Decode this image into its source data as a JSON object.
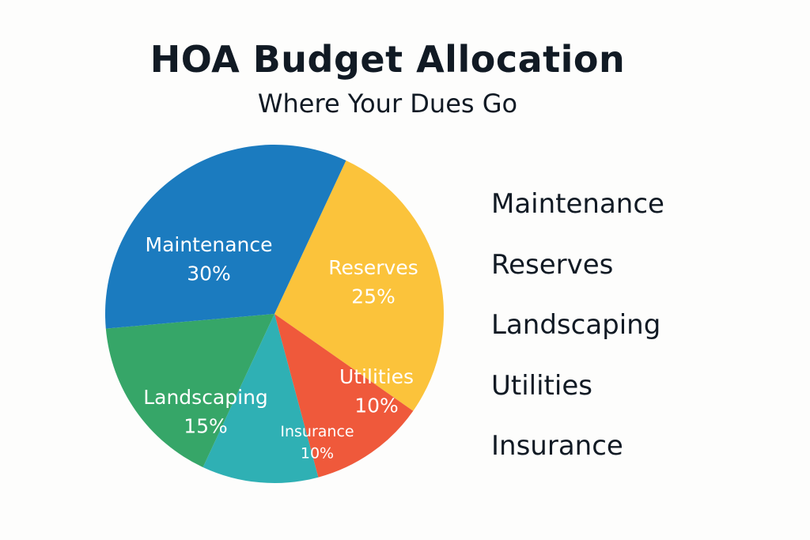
{
  "chart_data": {
    "type": "pie",
    "title": "HOA Budget Allocation",
    "subtitle": "Where Your Dues Go",
    "slices": [
      {
        "label": "Maintenance",
        "value": 30,
        "value_label": "30%",
        "color": "#1b7bbf"
      },
      {
        "label": "Reserves",
        "value": 25,
        "value_label": "25%",
        "color": "#fbc33b"
      },
      {
        "label": "Utilities",
        "value": 10,
        "value_label": "10%",
        "color": "#ef593b"
      },
      {
        "label": "Insurance",
        "value": 10,
        "value_label": "10%",
        "color": "#2fb0b4"
      },
      {
        "label": "Landscaping",
        "value": 15,
        "value_label": "15%",
        "color": "#36a668"
      }
    ],
    "legend": {
      "position": "right",
      "entries": [
        "Maintenance",
        "Reserves",
        "Landscaping",
        "Utilities",
        "Insurance"
      ]
    }
  }
}
